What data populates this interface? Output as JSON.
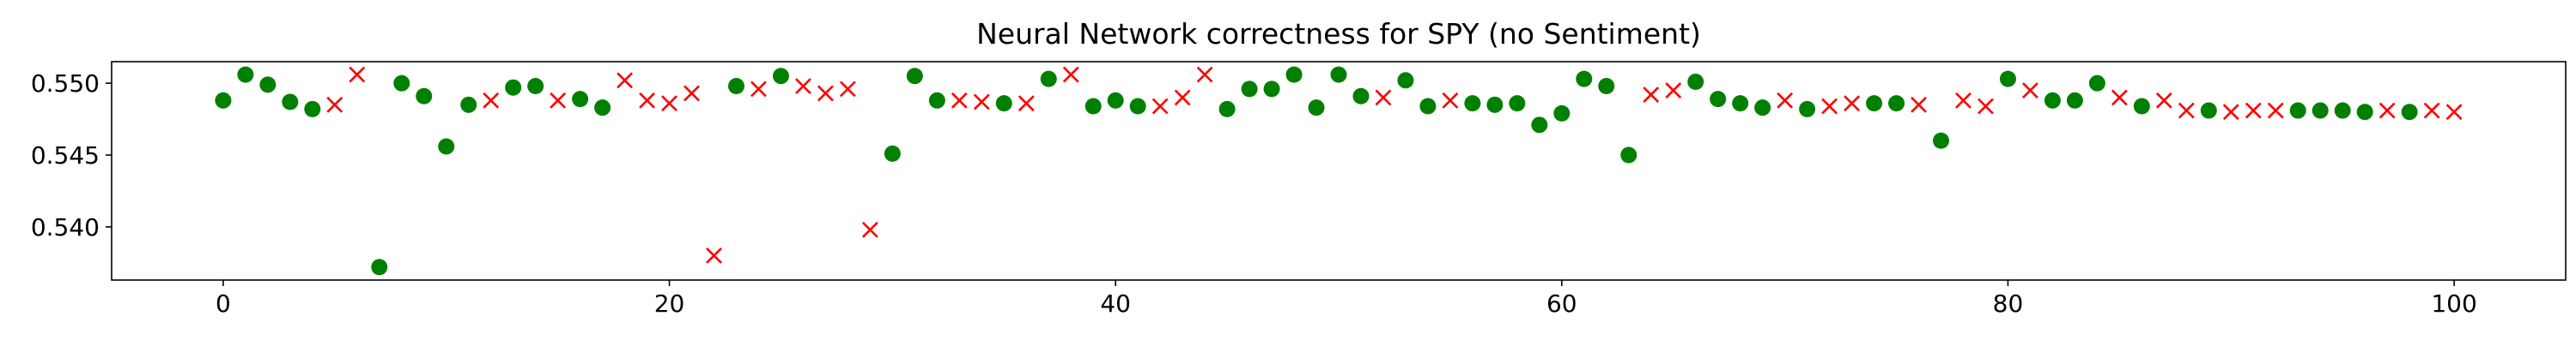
{
  "chart_data": {
    "type": "scatter",
    "title": "Neural Network correctness for SPY (no Sentiment)",
    "xlabel": "",
    "ylabel": "",
    "xlim": [
      -5,
      105
    ],
    "ylim": [
      0.5363,
      0.5515
    ],
    "xticks": [
      0,
      20,
      40,
      60,
      80,
      100
    ],
    "yticks": [
      0.54,
      0.545,
      0.55
    ],
    "ytick_labels": [
      "0.540",
      "0.545",
      "0.550"
    ],
    "grid": false,
    "legend": "none",
    "colors": {
      "correct": "#008000",
      "incorrect": "#ff0000",
      "axis": "#000000",
      "background": "#ffffff"
    },
    "series": [
      {
        "marker": "circle",
        "color": "#008000",
        "x": [
          0,
          1,
          2,
          3,
          4,
          7,
          8,
          9,
          10,
          11,
          13,
          14,
          16,
          17,
          23,
          25,
          30,
          31,
          32,
          35,
          37,
          39,
          40,
          41,
          45,
          46,
          47,
          48,
          49,
          50,
          51,
          53,
          54,
          56,
          57,
          58,
          59,
          60,
          61,
          62,
          63,
          66,
          67,
          68,
          69,
          71,
          74,
          75,
          77,
          80,
          82,
          83,
          84,
          86,
          89,
          93,
          94,
          95,
          96,
          98
        ],
        "y": [
          0.5488,
          0.5506,
          0.5499,
          0.5487,
          0.5482,
          0.5372,
          0.55,
          0.5491,
          0.5456,
          0.5485,
          0.5497,
          0.5498,
          0.5489,
          0.5483,
          0.5498,
          0.5505,
          0.5451,
          0.5505,
          0.5488,
          0.5486,
          0.5503,
          0.5484,
          0.5488,
          0.5484,
          0.5482,
          0.5496,
          0.5496,
          0.5506,
          0.5483,
          0.5506,
          0.5491,
          0.5502,
          0.5484,
          0.5486,
          0.5485,
          0.5486,
          0.5471,
          0.5479,
          0.5503,
          0.5498,
          0.545,
          0.5501,
          0.5489,
          0.5486,
          0.5483,
          0.5482,
          0.5486,
          0.5486,
          0.546,
          0.5503,
          0.5488,
          0.5488,
          0.55,
          0.5484,
          0.5481,
          0.5481,
          0.5481,
          0.5481,
          0.548,
          0.548
        ]
      },
      {
        "marker": "x",
        "color": "#ff0000",
        "x": [
          5,
          6,
          12,
          15,
          18,
          19,
          20,
          21,
          22,
          24,
          26,
          27,
          28,
          29,
          33,
          34,
          36,
          38,
          42,
          43,
          44,
          52,
          55,
          64,
          65,
          70,
          72,
          73,
          76,
          78,
          79,
          81,
          85,
          87,
          88,
          90,
          91,
          92,
          97,
          99,
          100
        ],
        "y": [
          0.5485,
          0.5506,
          0.5488,
          0.5488,
          0.5502,
          0.5488,
          0.5486,
          0.5493,
          0.538,
          0.5496,
          0.5498,
          0.5493,
          0.5496,
          0.5398,
          0.5488,
          0.5487,
          0.5486,
          0.5506,
          0.5484,
          0.549,
          0.5506,
          0.549,
          0.5488,
          0.5492,
          0.5495,
          0.5488,
          0.5484,
          0.5486,
          0.5485,
          0.5488,
          0.5484,
          0.5495,
          0.549,
          0.5488,
          0.5481,
          0.548,
          0.5481,
          0.5481,
          0.5481,
          0.5481,
          0.548
        ]
      }
    ]
  }
}
